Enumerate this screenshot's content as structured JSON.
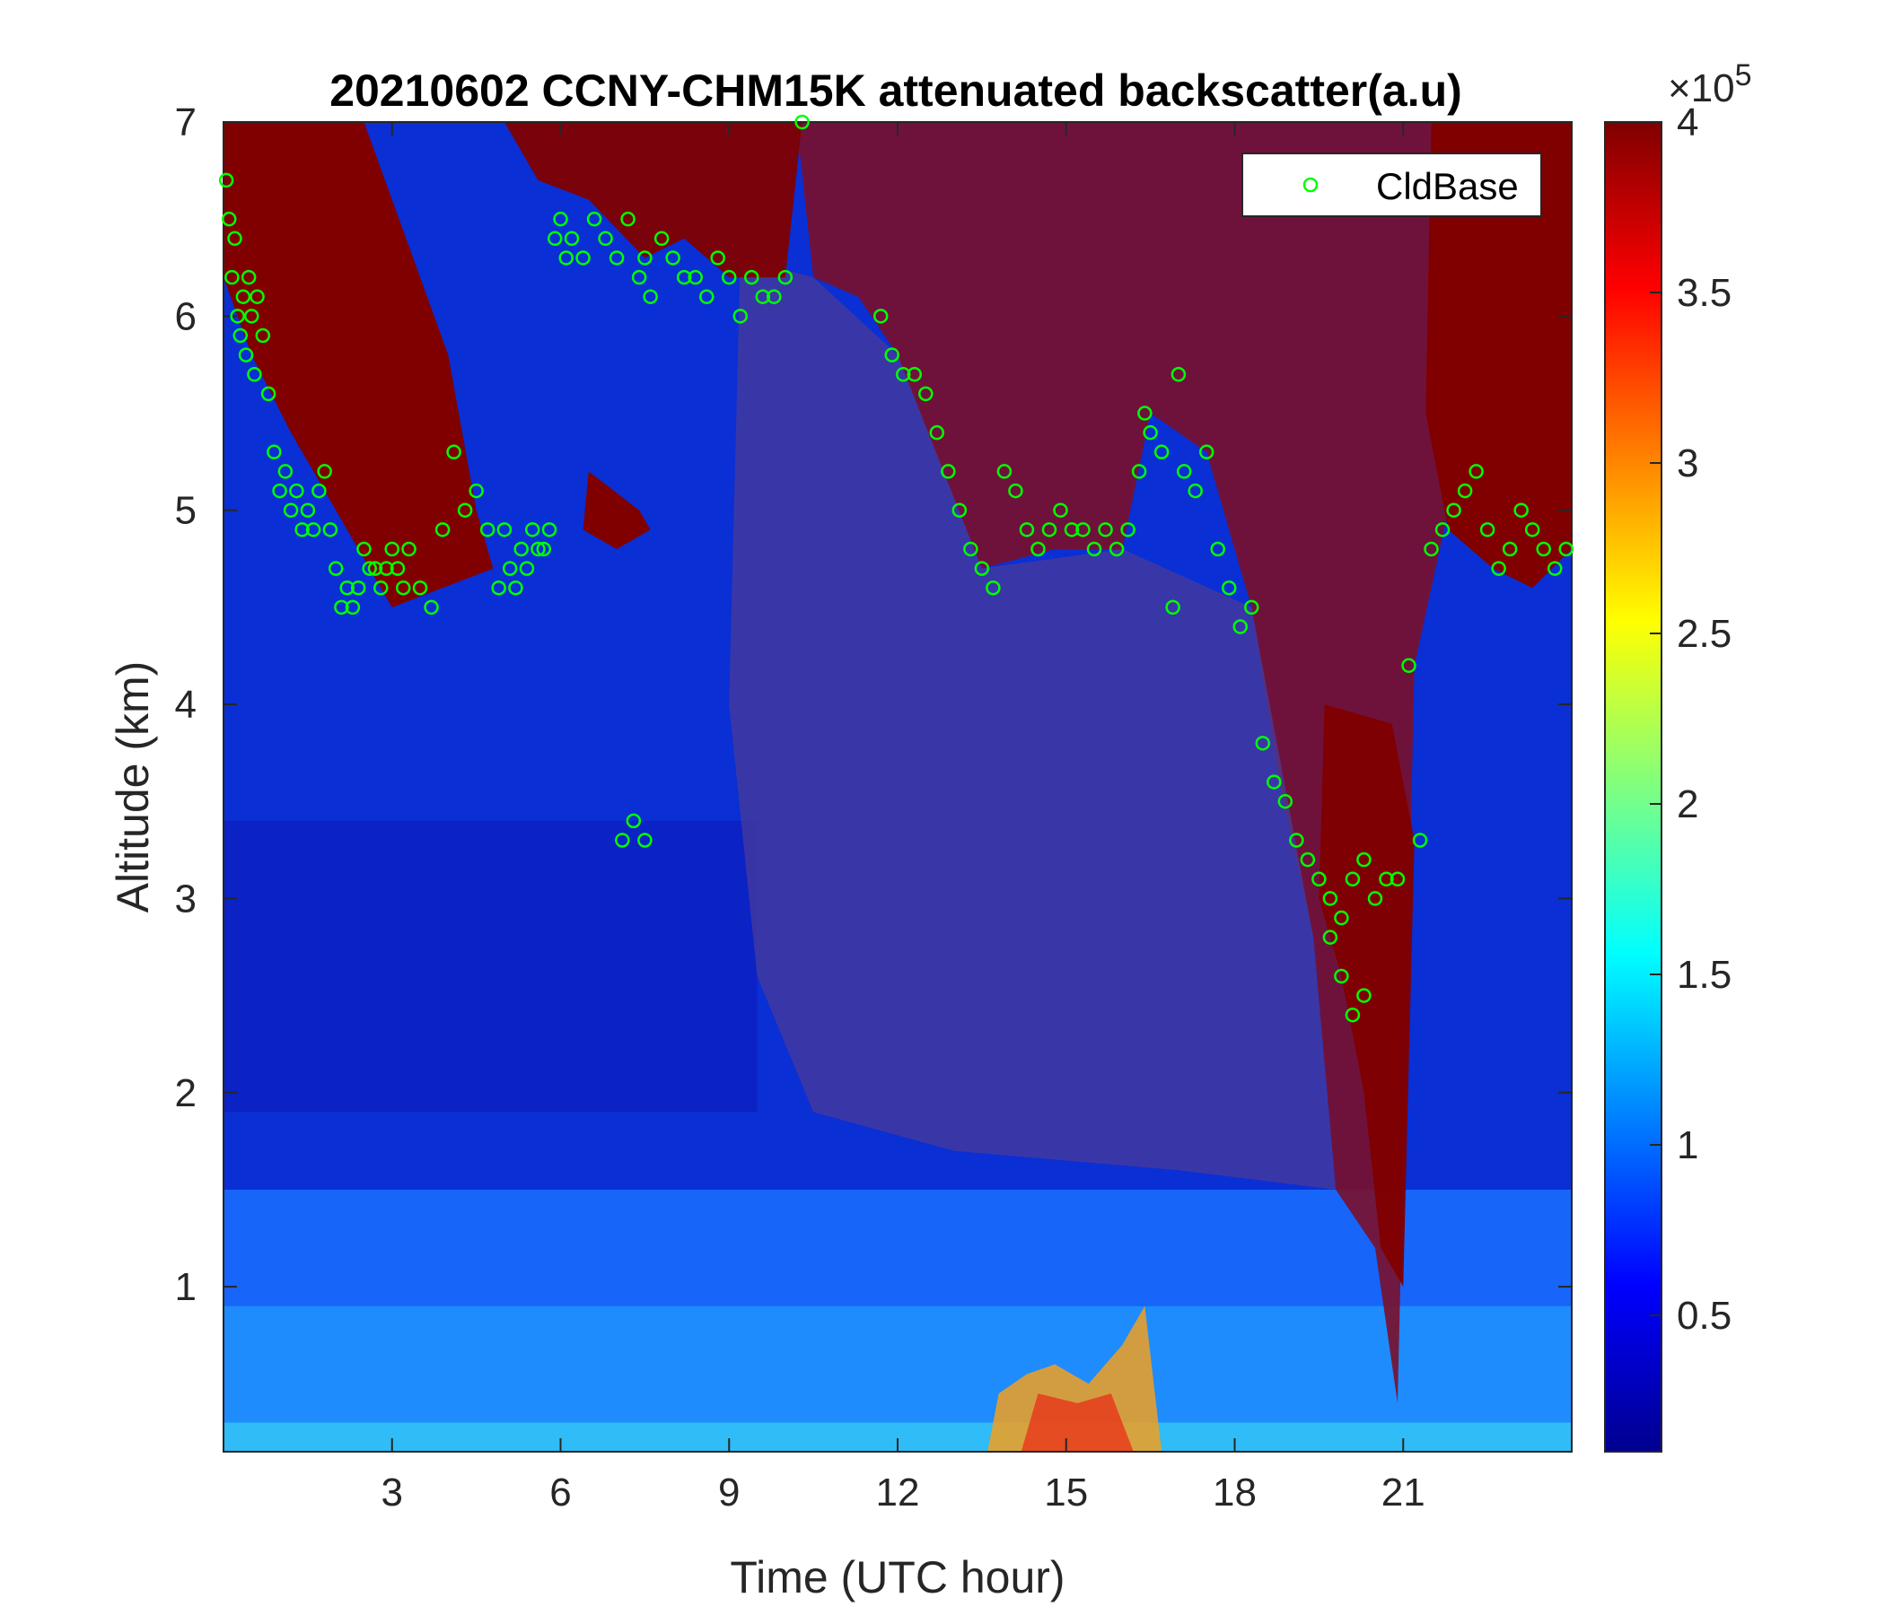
{
  "chart_data": {
    "type": "heatmap",
    "title": "20210602 CCNY-CHM15K attenuated backscatter(a.u)",
    "xlabel": "Time (UTC hour)",
    "ylabel": "Altitude (km)",
    "xlim": [
      0,
      24
    ],
    "ylim": [
      0.15,
      7
    ],
    "xticks": [
      "3",
      "6",
      "9",
      "12",
      "15",
      "18",
      "21"
    ],
    "xtick_values": [
      3,
      6,
      9,
      12,
      15,
      18,
      21
    ],
    "yticks": [
      "1",
      "2",
      "3",
      "4",
      "5",
      "6",
      "7"
    ],
    "ytick_values": [
      1,
      2,
      3,
      4,
      5,
      6,
      7
    ],
    "colorbar": {
      "colormap": "jet",
      "range": [
        10000,
        400000
      ],
      "ticks": [
        "0.5",
        "1",
        "1.5",
        "2",
        "2.5",
        "3",
        "3.5",
        "4"
      ],
      "tick_values": [
        0.5,
        1,
        1.5,
        2,
        2.5,
        3,
        3.5,
        4
      ],
      "exponent_label": "×10",
      "exponent": "5"
    },
    "grid": false,
    "legend": {
      "position": "top-right",
      "entries": [
        {
          "name": "CldBase",
          "marker": "circle",
          "color": "#00ff00"
        }
      ]
    },
    "series": [
      {
        "name": "CldBase",
        "type": "scatter",
        "x": [
          0.05,
          0.1,
          0.15,
          0.2,
          0.25,
          0.3,
          0.35,
          0.4,
          0.45,
          0.5,
          0.55,
          0.6,
          0.7,
          0.8,
          0.9,
          1.0,
          1.1,
          1.2,
          1.3,
          1.4,
          1.5,
          1.6,
          1.7,
          1.8,
          1.9,
          2.0,
          2.1,
          2.2,
          2.3,
          2.4,
          2.5,
          2.6,
          2.7,
          2.8,
          2.9,
          3.0,
          3.1,
          3.2,
          3.3,
          3.5,
          3.7,
          3.9,
          4.1,
          4.3,
          4.5,
          4.7,
          4.9,
          5.0,
          5.1,
          5.2,
          5.3,
          5.4,
          5.5,
          5.6,
          5.7,
          5.8,
          5.9,
          6.0,
          6.1,
          6.2,
          6.4,
          6.6,
          6.8,
          7.0,
          7.2,
          7.4,
          7.5,
          7.6,
          7.8,
          8.0,
          8.2,
          8.4,
          8.6,
          8.8,
          9.0,
          9.2,
          9.4,
          9.6,
          9.8,
          10.0,
          10.3,
          11.7,
          11.9,
          12.1,
          12.3,
          12.5,
          12.7,
          12.9,
          13.1,
          13.3,
          13.5,
          13.7,
          13.9,
          14.1,
          14.3,
          14.5,
          14.7,
          14.9,
          15.1,
          15.3,
          15.5,
          15.7,
          15.9,
          16.1,
          16.3,
          16.5,
          16.7,
          16.9,
          17.1,
          17.3,
          17.5,
          17.7,
          17.9,
          18.1,
          18.3,
          18.5,
          18.7,
          18.9,
          19.1,
          19.3,
          19.5,
          19.7,
          19.9,
          20.1,
          20.3,
          20.5,
          20.7,
          20.9,
          21.1,
          21.3,
          21.5,
          21.7,
          21.9,
          22.1,
          22.3,
          22.5,
          22.7,
          22.9,
          23.1,
          23.3,
          23.5,
          23.7,
          23.9,
          7.1,
          7.3,
          7.5,
          19.7,
          19.9,
          20.1,
          20.3,
          17.0,
          16.4
        ],
        "y": [
          6.7,
          6.5,
          6.2,
          6.4,
          6.0,
          5.9,
          6.1,
          5.8,
          6.2,
          6.0,
          5.7,
          6.1,
          5.9,
          5.6,
          5.3,
          5.1,
          5.2,
          5.0,
          5.1,
          4.9,
          5.0,
          4.9,
          5.1,
          5.2,
          4.9,
          4.7,
          4.5,
          4.6,
          4.5,
          4.6,
          4.8,
          4.7,
          4.7,
          4.6,
          4.7,
          4.8,
          4.7,
          4.6,
          4.8,
          4.6,
          4.5,
          4.9,
          5.3,
          5.0,
          5.1,
          4.9,
          4.6,
          4.9,
          4.7,
          4.6,
          4.8,
          4.7,
          4.9,
          4.8,
          4.8,
          4.9,
          6.4,
          6.5,
          6.3,
          6.4,
          6.3,
          6.5,
          6.4,
          6.3,
          6.5,
          6.2,
          6.3,
          6.1,
          6.4,
          6.3,
          6.2,
          6.2,
          6.1,
          6.3,
          6.2,
          6.0,
          6.2,
          6.1,
          6.1,
          6.2,
          7.0,
          6.0,
          5.8,
          5.7,
          5.7,
          5.6,
          5.4,
          5.2,
          5.0,
          4.8,
          4.7,
          4.6,
          5.2,
          5.1,
          4.9,
          4.8,
          4.9,
          5.0,
          4.9,
          4.9,
          4.8,
          4.9,
          4.8,
          4.9,
          5.2,
          5.4,
          5.3,
          4.5,
          5.2,
          5.1,
          5.3,
          4.8,
          4.6,
          4.4,
          4.5,
          3.8,
          3.6,
          3.5,
          3.3,
          3.2,
          3.1,
          3.0,
          2.9,
          3.1,
          3.2,
          3.0,
          3.1,
          3.1,
          4.2,
          3.3,
          4.8,
          4.9,
          5.0,
          5.1,
          5.2,
          4.9,
          4.7,
          4.8,
          5.0,
          4.9,
          4.8,
          4.7,
          4.8,
          3.3,
          3.4,
          3.3,
          2.8,
          2.6,
          2.4,
          2.5,
          5.7,
          5.5
        ]
      }
    ]
  }
}
